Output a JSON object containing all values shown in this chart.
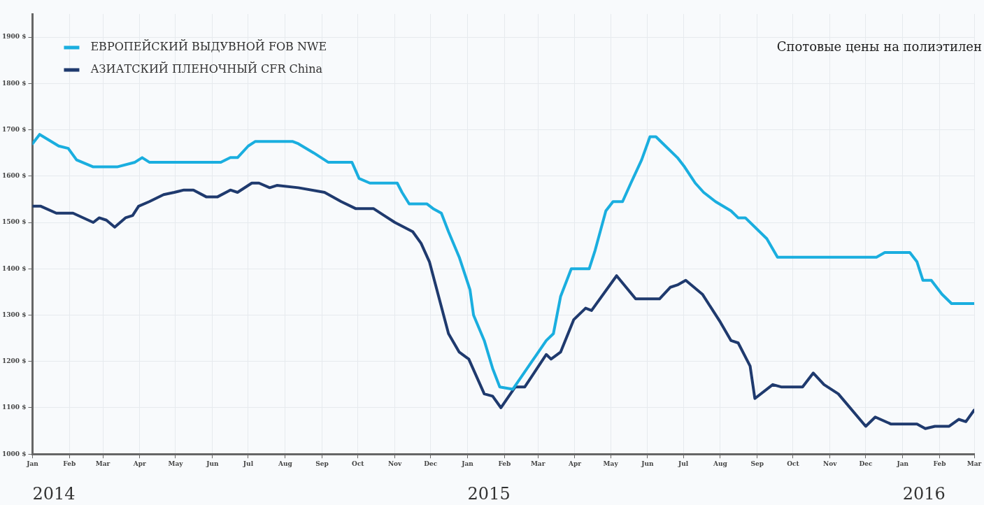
{
  "chart_data": {
    "type": "line",
    "title": "Спотовые цены на полиэтилен",
    "xlim": [
      "2014-01",
      "2016-03"
    ],
    "xticks": [
      {
        "value": "2014-01",
        "label": "Jan"
      },
      {
        "value": "2014-02",
        "label": "Feb"
      },
      {
        "value": "2014-03",
        "label": "Mar"
      },
      {
        "value": "2014-04",
        "label": "Apr"
      },
      {
        "value": "2014-05",
        "label": "May"
      },
      {
        "value": "2014-06",
        "label": "Jun"
      },
      {
        "value": "2014-07",
        "label": "Jul"
      },
      {
        "value": "2014-08",
        "label": "Aug"
      },
      {
        "value": "2014-09",
        "label": "Sep"
      },
      {
        "value": "2014-10",
        "label": "Oct"
      },
      {
        "value": "2014-11",
        "label": "Nov"
      },
      {
        "value": "2014-12",
        "label": "Dec"
      },
      {
        "value": "2015-01",
        "label": "Jan"
      },
      {
        "value": "2015-02",
        "label": "Feb"
      },
      {
        "value": "2015-03",
        "label": "Mar"
      },
      {
        "value": "2015-04",
        "label": "Apr"
      },
      {
        "value": "2015-05",
        "label": "May"
      },
      {
        "value": "2015-06",
        "label": "Jun"
      },
      {
        "value": "2015-07",
        "label": "Jul"
      },
      {
        "value": "2015-08",
        "label": "Aug"
      },
      {
        "value": "2015-09",
        "label": "Sep"
      },
      {
        "value": "2015-10",
        "label": "Oct"
      },
      {
        "value": "2015-11",
        "label": "Nov"
      },
      {
        "value": "2015-12",
        "label": "Dec"
      },
      {
        "value": "2016-01",
        "label": "Jan"
      },
      {
        "value": "2016-02",
        "label": "Feb"
      },
      {
        "value": "2016-03",
        "label": "Mar"
      }
    ],
    "ylim": [
      1000,
      1950
    ],
    "yticks": [
      {
        "value": 1000,
        "label": "1000 $"
      },
      {
        "value": 1100,
        "label": "1100 $"
      },
      {
        "value": 1200,
        "label": "1200 $"
      },
      {
        "value": 1300,
        "label": "1300 $"
      },
      {
        "value": 1400,
        "label": "1400 $"
      },
      {
        "value": 1500,
        "label": "1500 $"
      },
      {
        "value": 1600,
        "label": "1600 $"
      },
      {
        "value": 1700,
        "label": "1700 $"
      },
      {
        "value": 1800,
        "label": "1800 $"
      },
      {
        "value": 1900,
        "label": "1900 $"
      }
    ],
    "grid": true,
    "legend": "top left",
    "marker": "none",
    "line_style": "solid",
    "annotations": [
      "2014",
      "2015",
      "2016"
    ],
    "series": [
      {
        "name": "ЕВРОПЕЙСКИЙ ВЫДУВНОЙ FOB NWE",
        "color": "#1aaedf",
        "x": [
          "2014-01-01",
          "2014-01-07",
          "2014-01-23",
          "2014-01-31",
          "2014-02-07",
          "2014-02-21",
          "2014-03-13",
          "2014-03-28",
          "2014-04-03",
          "2014-04-09",
          "2014-06-08",
          "2014-06-16",
          "2014-06-22",
          "2014-07-01",
          "2014-07-07",
          "2014-08-07",
          "2014-08-12",
          "2014-08-25",
          "2014-09-06",
          "2014-09-26",
          "2014-10-02",
          "2014-10-11",
          "2014-11-03",
          "2014-11-07",
          "2014-11-13",
          "2014-11-28",
          "2014-12-03",
          "2014-12-10",
          "2014-12-16",
          "2014-12-25",
          "2015-01-03",
          "2015-01-06",
          "2015-01-15",
          "2015-01-22",
          "2015-01-28",
          "2015-02-08",
          "2015-02-24",
          "2015-03-08",
          "2015-03-14",
          "2015-03-20",
          "2015-03-29",
          "2015-04-13",
          "2015-04-18",
          "2015-04-27",
          "2015-05-03",
          "2015-05-11",
          "2015-05-18",
          "2015-05-27",
          "2015-06-03",
          "2015-06-08",
          "2015-06-14",
          "2015-06-26",
          "2015-07-02",
          "2015-07-11",
          "2015-07-18",
          "2015-07-28",
          "2015-08-10",
          "2015-08-16",
          "2015-08-22",
          "2015-09-09",
          "2015-09-18",
          "2015-12-10",
          "2015-12-17",
          "2015-12-26",
          "2016-01-07",
          "2016-01-13",
          "2016-01-18",
          "2016-01-25",
          "2016-02-03",
          "2016-02-11",
          "2016-03-01"
        ],
        "values": [
          1670,
          1690,
          1665,
          1660,
          1635,
          1620,
          1620,
          1630,
          1640,
          1630,
          1630,
          1640,
          1640,
          1665,
          1675,
          1675,
          1670,
          1650,
          1630,
          1630,
          1595,
          1585,
          1585,
          1565,
          1540,
          1540,
          1530,
          1520,
          1480,
          1425,
          1355,
          1300,
          1245,
          1185,
          1145,
          1140,
          1200,
          1245,
          1260,
          1340,
          1400,
          1400,
          1440,
          1525,
          1545,
          1545,
          1585,
          1635,
          1685,
          1685,
          1670,
          1640,
          1620,
          1585,
          1565,
          1545,
          1525,
          1510,
          1510,
          1465,
          1425,
          1425,
          1435,
          1435,
          1435,
          1415,
          1375,
          1375,
          1345,
          1325,
          1325
        ]
      },
      {
        "name": "АЗИАТСКИЙ ПЛЕНОЧНЫЙ CFR China",
        "color": "#1f3a6e",
        "x": [
          "2014-01-01",
          "2014-01-08",
          "2014-01-21",
          "2014-02-04",
          "2014-02-21",
          "2014-02-26",
          "2014-03-04",
          "2014-03-11",
          "2014-03-20",
          "2014-03-26",
          "2014-03-31",
          "2014-04-09",
          "2014-04-21",
          "2014-04-30",
          "2014-05-08",
          "2014-05-16",
          "2014-05-27",
          "2014-06-05",
          "2014-06-16",
          "2014-06-22",
          "2014-07-04",
          "2014-07-10",
          "2014-07-19",
          "2014-07-25",
          "2014-08-12",
          "2014-09-03",
          "2014-09-17",
          "2014-09-29",
          "2014-10-14",
          "2014-10-23",
          "2014-11-01",
          "2014-11-16",
          "2014-11-23",
          "2014-11-30",
          "2014-12-16",
          "2014-12-25",
          "2015-01-02",
          "2015-01-15",
          "2015-01-22",
          "2015-01-29",
          "2015-02-10",
          "2015-02-18",
          "2015-03-08",
          "2015-03-12",
          "2015-03-20",
          "2015-03-31",
          "2015-04-10",
          "2015-04-15",
          "2015-05-06",
          "2015-05-22",
          "2015-06-11",
          "2015-06-20",
          "2015-06-26",
          "2015-07-03",
          "2015-07-17",
          "2015-08-01",
          "2015-08-10",
          "2015-08-16",
          "2015-08-26",
          "2015-08-30",
          "2015-09-14",
          "2015-09-21",
          "2015-10-09",
          "2015-10-18",
          "2015-10-27",
          "2015-11-08",
          "2015-12-01",
          "2015-12-09",
          "2015-12-22",
          "2016-01-13",
          "2016-01-20",
          "2016-01-28",
          "2016-02-09",
          "2016-02-17",
          "2016-02-23",
          "2016-03-01"
        ],
        "values": [
          1535,
          1535,
          1520,
          1520,
          1500,
          1510,
          1505,
          1490,
          1510,
          1515,
          1535,
          1545,
          1560,
          1565,
          1570,
          1570,
          1555,
          1555,
          1570,
          1565,
          1585,
          1585,
          1575,
          1580,
          1575,
          1565,
          1545,
          1530,
          1530,
          1515,
          1500,
          1480,
          1455,
          1415,
          1260,
          1220,
          1205,
          1130,
          1125,
          1100,
          1145,
          1145,
          1215,
          1205,
          1220,
          1290,
          1315,
          1310,
          1385,
          1335,
          1335,
          1360,
          1365,
          1375,
          1345,
          1285,
          1245,
          1240,
          1190,
          1120,
          1150,
          1145,
          1145,
          1175,
          1150,
          1130,
          1060,
          1080,
          1065,
          1065,
          1055,
          1060,
          1060,
          1075,
          1070,
          1095
        ]
      }
    ]
  }
}
